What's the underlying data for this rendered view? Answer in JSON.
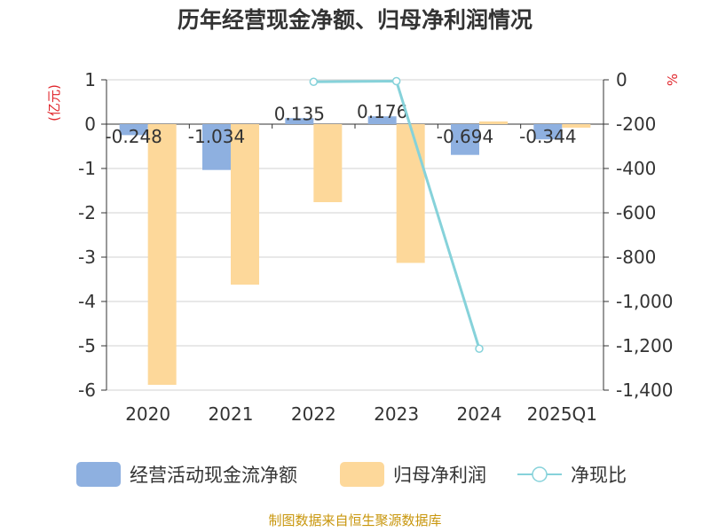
{
  "chart_data": {
    "type": "bar",
    "title": "历年经营现金净额、归母净利润情况",
    "categories": [
      "2020",
      "2021",
      "2022",
      "2023",
      "2024",
      "2025Q1"
    ],
    "left_axis": {
      "unit_label": "(亿元)",
      "min": -6,
      "max": 1,
      "ticks": [
        "1",
        "0",
        "-1",
        "-2",
        "-3",
        "-4",
        "-5",
        "-6"
      ]
    },
    "right_axis": {
      "unit_label": "%",
      "min": -1400,
      "max": 0,
      "ticks": [
        "0",
        "-200",
        "-400",
        "-600",
        "-800",
        "-1,000",
        "-1,200",
        "-1,400"
      ]
    },
    "series": [
      {
        "name": "经营活动现金流净额",
        "kind": "bar",
        "axis": "left",
        "color": "#8eb0e0",
        "values": [
          -0.248,
          -1.034,
          0.135,
          0.176,
          -0.694,
          -0.344
        ],
        "labels": [
          "-0.248",
          "-1.034",
          "0.135",
          "0.176",
          "-0.694",
          "-0.344"
        ]
      },
      {
        "name": "归母净利润",
        "kind": "bar",
        "axis": "left",
        "color": "#fdd89a",
        "values": [
          -5.88,
          -3.62,
          -1.76,
          -3.13,
          0.06,
          -0.08
        ]
      },
      {
        "name": "净现比",
        "kind": "line",
        "axis": "right",
        "color": "#86d2da",
        "values": [
          null,
          null,
          -9,
          -6,
          -1213,
          null
        ]
      }
    ],
    "legend": [
      "经营活动现金流净额",
      "归母净利润",
      "净现比"
    ],
    "legend_position": "bottom",
    "source": "制图数据来自恒生聚源数据库"
  },
  "colors": {
    "title": "#333333",
    "axis_unit": "#e0252b",
    "source": "#c8960c",
    "grid": "#d0d0d0",
    "axis": "#333333"
  }
}
